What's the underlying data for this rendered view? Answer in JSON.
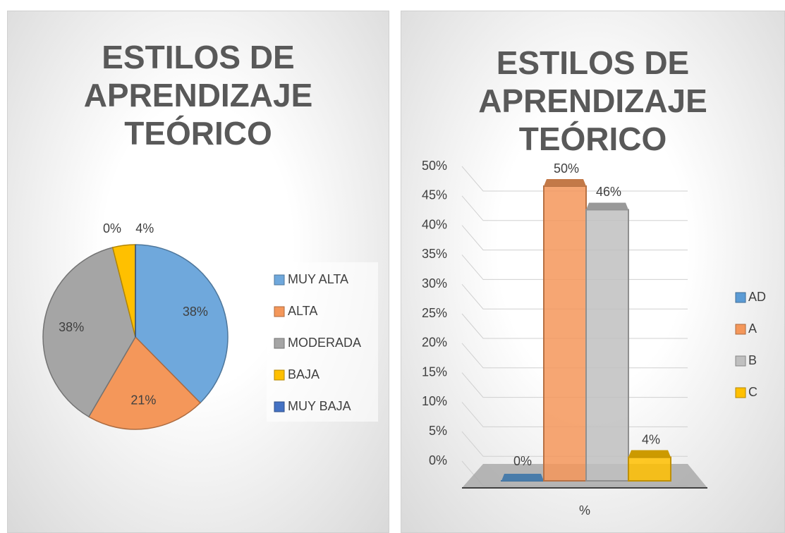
{
  "chart_data": [
    {
      "type": "pie",
      "title": "ESTILOS DE\nAPRENDIZAJE\nTEÓRICO",
      "categories": [
        "MUY ALTA",
        "ALTA",
        "MODERADA",
        "BAJA",
        "MUY BAJA"
      ],
      "values": [
        38,
        21,
        38,
        4,
        0
      ],
      "value_labels": [
        "38%",
        "21%",
        "38%",
        "4%",
        "0%"
      ],
      "colors": [
        "#6fa8dc",
        "#f4975a",
        "#a5a5a5",
        "#ffc000",
        "#4472c4"
      ],
      "legend": "right"
    },
    {
      "type": "bar",
      "title": "ESTILOS DE\nAPRENDIZAJE\nTEÓRICO",
      "categories": [
        "%"
      ],
      "series": [
        {
          "name": "AD",
          "color": "#5b9bd5",
          "values": [
            0
          ],
          "value_labels": [
            "0%"
          ]
        },
        {
          "name": "A",
          "color": "#f4975a",
          "values": [
            50
          ],
          "value_labels": [
            "50%"
          ]
        },
        {
          "name": "B",
          "color": "#bfbfbf",
          "values": [
            46
          ],
          "value_labels": [
            "46%"
          ]
        },
        {
          "name": "C",
          "color": "#ffc000",
          "values": [
            4
          ],
          "value_labels": [
            "4%"
          ]
        }
      ],
      "ylim": [
        0,
        50
      ],
      "yticks": [
        {
          "value": 0,
          "label": "0%"
        },
        {
          "value": 5,
          "label": "5%"
        },
        {
          "value": 10,
          "label": "10%"
        },
        {
          "value": 15,
          "label": "15%"
        },
        {
          "value": 20,
          "label": "20%"
        },
        {
          "value": 25,
          "label": "25%"
        },
        {
          "value": 30,
          "label": "30%"
        },
        {
          "value": 35,
          "label": "35%"
        },
        {
          "value": 40,
          "label": "40%"
        },
        {
          "value": 45,
          "label": "45%"
        },
        {
          "value": 50,
          "label": "50%"
        }
      ],
      "grid": true,
      "legend": "right"
    }
  ]
}
